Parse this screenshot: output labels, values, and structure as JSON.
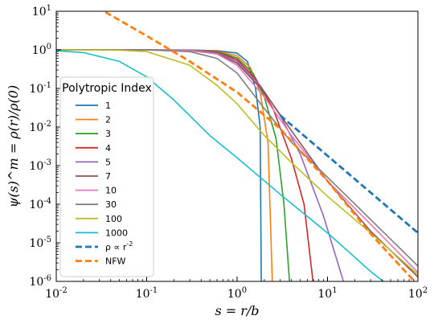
{
  "chart_data": {
    "type": "line",
    "xscale": "log",
    "yscale": "log",
    "xlim": [
      0.01,
      100
    ],
    "ylim": [
      1e-06,
      10
    ],
    "xlabel": "s = r/b",
    "ylabel": "ψ(s)^m = ρ(r)/ρ(0)",
    "x_tick_labels": [
      "10^-2",
      "10^-1",
      "10^0",
      "10^1",
      "10^2"
    ],
    "y_tick_labels": [
      "10^-6",
      "10^-5",
      "10^-4",
      "10^-3",
      "10^-2",
      "10^-1",
      "10^0",
      "10^1"
    ],
    "legend": {
      "title": "Polytropic Index",
      "placement": "center-left"
    },
    "series": [
      {
        "name": "1",
        "color": "#1f77b4",
        "dash": "solid",
        "x": [
          0.01,
          0.1,
          0.3,
          0.6,
          1,
          1.3,
          1.6,
          1.8,
          1.85
        ],
        "y": [
          1.0,
          0.999,
          0.99,
          0.95,
          0.82,
          0.5,
          0.1,
          0.01,
          1e-06
        ]
      },
      {
        "name": "2",
        "color": "#ff7f0e",
        "dash": "solid",
        "x": [
          0.01,
          0.1,
          0.3,
          0.6,
          1,
          1.4,
          1.8,
          2.2,
          2.45
        ],
        "y": [
          1.0,
          0.999,
          0.98,
          0.93,
          0.7,
          0.35,
          0.08,
          0.004,
          1e-06
        ]
      },
      {
        "name": "3",
        "color": "#2ca02c",
        "dash": "solid",
        "x": [
          0.01,
          0.1,
          0.3,
          0.6,
          1,
          1.5,
          2,
          2.7,
          3.3,
          3.8
        ],
        "y": [
          1.0,
          0.998,
          0.98,
          0.9,
          0.62,
          0.25,
          0.06,
          0.005,
          0.0001,
          1e-06
        ]
      },
      {
        "name": "4",
        "color": "#d62728",
        "dash": "solid",
        "x": [
          0.01,
          0.1,
          0.3,
          0.6,
          1,
          1.6,
          2.5,
          4,
          5.5,
          6.9
        ],
        "y": [
          1.0,
          0.998,
          0.97,
          0.88,
          0.56,
          0.18,
          0.03,
          0.0015,
          0.0001,
          1e-06
        ]
      },
      {
        "name": "5",
        "color": "#9467bd",
        "dash": "solid",
        "x": [
          0.01,
          0.1,
          0.3,
          0.6,
          1,
          1.8,
          3,
          5,
          9,
          15
        ],
        "y": [
          1.0,
          0.998,
          0.97,
          0.85,
          0.5,
          0.12,
          0.02,
          0.002,
          5e-05,
          1e-06
        ]
      },
      {
        "name": "7",
        "color": "#8c564b",
        "dash": "solid",
        "x": [
          0.01,
          0.1,
          0.3,
          0.6,
          1,
          2,
          4,
          10,
          30,
          100
        ],
        "y": [
          1.0,
          0.997,
          0.96,
          0.8,
          0.45,
          0.08,
          0.008,
          0.0004,
          2e-05,
          1.3e-06
        ]
      },
      {
        "name": "10",
        "color": "#e377c2",
        "dash": "solid",
        "x": [
          0.01,
          0.1,
          0.3,
          0.6,
          1,
          2,
          4,
          10,
          30,
          100
        ],
        "y": [
          1.0,
          0.997,
          0.96,
          0.78,
          0.4,
          0.06,
          0.006,
          0.0004,
          3e-05,
          1.7e-06
        ]
      },
      {
        "name": "30",
        "color": "#7f7f7f",
        "dash": "solid",
        "x": [
          0.01,
          0.1,
          0.3,
          0.6,
          1,
          2,
          4,
          10,
          30,
          100
        ],
        "y": [
          1.0,
          0.995,
          0.9,
          0.6,
          0.25,
          0.03,
          0.004,
          0.0005,
          4e-05,
          2.5e-06
        ]
      },
      {
        "name": "100",
        "color": "#bcbd22",
        "dash": "solid",
        "x": [
          0.01,
          0.05,
          0.1,
          0.3,
          0.6,
          1,
          2,
          4,
          10,
          30,
          100
        ],
        "y": [
          1.0,
          0.98,
          0.9,
          0.4,
          0.12,
          0.04,
          0.006,
          0.0012,
          0.00016,
          1.8e-05,
          1.5e-06
        ]
      },
      {
        "name": "1000",
        "color": "#17becf",
        "dash": "solid",
        "x": [
          0.01,
          0.02,
          0.05,
          0.1,
          0.2,
          0.5,
          1,
          3,
          10,
          30,
          100
        ],
        "y": [
          0.95,
          0.85,
          0.5,
          0.2,
          0.05,
          0.006,
          0.0016,
          0.00018,
          1.8e-05,
          1.8e-06,
          2e-07
        ]
      },
      {
        "name": "ρ ∝ r^-2",
        "color": "#1f77b4",
        "dash": "dashed",
        "x": [
          3,
          100
        ],
        "y": [
          0.02,
          1.8e-05
        ]
      },
      {
        "name": "NFW",
        "color": "#ff7f0e",
        "dash": "dashed",
        "x": [
          0.035,
          0.1,
          0.3,
          1,
          3,
          10,
          30,
          100
        ],
        "y": [
          9.5,
          2.3,
          0.5,
          0.08,
          0.009,
          0.0004,
          1.7e-05,
          8e-07
        ]
      }
    ]
  }
}
